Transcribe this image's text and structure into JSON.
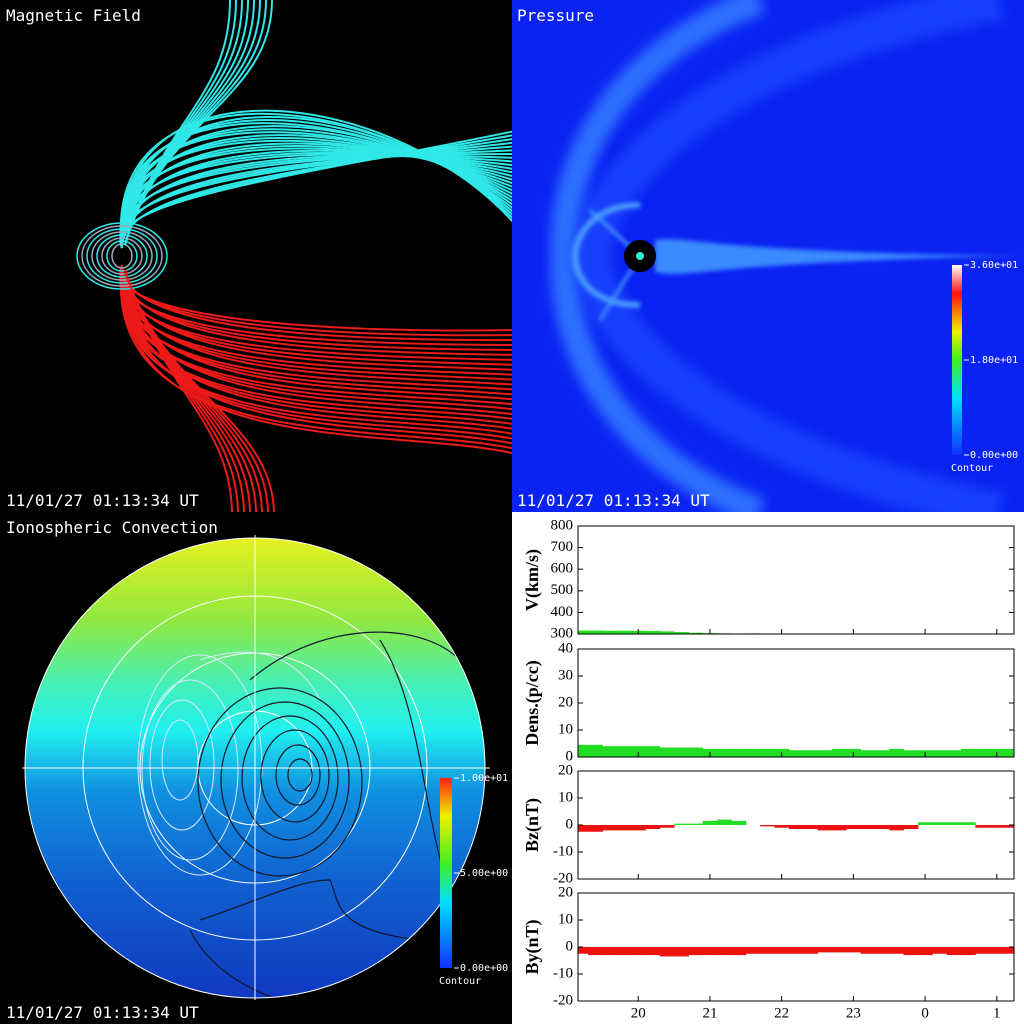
{
  "panels": {
    "magnetic": {
      "title": "Magnetic Field",
      "timestamp": "11/01/27 01:13:34 UT"
    },
    "pressure": {
      "title": "Pressure",
      "timestamp": "11/01/27 01:13:34 UT",
      "colorbar": {
        "range": [
          0,
          36
        ],
        "ticks": [
          {
            "value": 36,
            "label": "3.60e+01"
          },
          {
            "value": 18,
            "label": "1.80e+01"
          },
          {
            "value": 0,
            "label": "0.00e+00"
          }
        ],
        "caption": "Contour"
      }
    },
    "ionosphere": {
      "title": "Ionospheric Convection",
      "timestamp": "11/01/27 01:13:34 UT",
      "colorbar": {
        "range": [
          0,
          10
        ],
        "ticks": [
          {
            "value": 10,
            "label": "1.00e+01"
          },
          {
            "value": 5,
            "label": "5.00e+00"
          },
          {
            "value": 0,
            "label": "0.00e+00"
          }
        ],
        "caption": "Contour"
      }
    }
  },
  "chart_data": [
    {
      "type": "area",
      "ylabel": "V(km/s)",
      "x": [
        19.2,
        19.4,
        19.6,
        19.8,
        20.0,
        20.2,
        20.4,
        20.6,
        20.8,
        21.0,
        21.2,
        21.4,
        21.6,
        21.8,
        22.0,
        22.2,
        22.4,
        22.6,
        22.8,
        23.0,
        23.2,
        23.4,
        23.6,
        23.8,
        24.0,
        24.2,
        24.4,
        24.6,
        24.8,
        25.0,
        25.2
      ],
      "values": [
        316,
        316,
        315,
        315,
        315,
        314,
        312,
        309,
        306,
        304,
        303,
        302,
        303,
        300,
        300,
        300,
        300,
        300,
        300,
        300,
        300,
        300,
        300,
        300,
        300,
        300,
        300,
        300,
        300,
        300,
        300
      ],
      "xlim": [
        19.16,
        25.24
      ],
      "ylim": [
        300,
        800
      ],
      "yticks": [
        300,
        400,
        500,
        600,
        700,
        800
      ],
      "color_positive": "#22dd22",
      "color_negative": "#ee1111"
    },
    {
      "type": "area",
      "ylabel": "Dens.(p/cc)",
      "x": [
        19.2,
        19.4,
        19.6,
        19.8,
        20.0,
        20.2,
        20.4,
        20.6,
        20.8,
        21.0,
        21.2,
        21.4,
        21.6,
        21.8,
        22.0,
        22.2,
        22.4,
        22.6,
        22.8,
        23.0,
        23.2,
        23.4,
        23.6,
        23.8,
        24.0,
        24.2,
        24.4,
        24.6,
        24.8,
        25.0,
        25.2
      ],
      "values": [
        4.5,
        4.5,
        4,
        4,
        4,
        4,
        3.5,
        3.5,
        3.5,
        3,
        3,
        3,
        3,
        3,
        3,
        2.5,
        2.5,
        2.5,
        3,
        3,
        2.5,
        2.5,
        3,
        2.5,
        2.5,
        2.5,
        2.5,
        3,
        3,
        3,
        3
      ],
      "xlim": [
        19.16,
        25.24
      ],
      "ylim": [
        0,
        40
      ],
      "yticks": [
        0,
        10,
        20,
        30,
        40
      ],
      "color_positive": "#22dd22",
      "color_negative": "#ee1111"
    },
    {
      "type": "area",
      "ylabel": "Bz(nT)",
      "x": [
        19.2,
        19.4,
        19.6,
        19.8,
        20.0,
        20.2,
        20.4,
        20.6,
        20.8,
        21.0,
        21.2,
        21.4,
        21.6,
        21.8,
        22.0,
        22.2,
        22.4,
        22.6,
        22.8,
        23.0,
        23.2,
        23.4,
        23.6,
        23.8,
        24.0,
        24.2,
        24.4,
        24.6,
        24.8,
        25.0,
        25.2
      ],
      "values": [
        -2.5,
        -2.5,
        -2,
        -2,
        -2,
        -1.5,
        -1,
        0.5,
        0.5,
        1.5,
        2,
        1.5,
        0,
        -0.5,
        -1,
        -1.5,
        -1.5,
        -2,
        -2,
        -1.5,
        -1.5,
        -1.5,
        -2,
        -1.5,
        1,
        1,
        1,
        1,
        -1,
        -1,
        -1
      ],
      "xlim": [
        19.16,
        25.24
      ],
      "ylim": [
        -20,
        20
      ],
      "yticks": [
        -20,
        -10,
        0,
        10,
        20
      ],
      "color_positive": "#22dd22",
      "color_negative": "#ee1111"
    },
    {
      "type": "area",
      "ylabel": "By(nT)",
      "x": [
        19.2,
        19.4,
        19.6,
        19.8,
        20.0,
        20.2,
        20.4,
        20.6,
        20.8,
        21.0,
        21.2,
        21.4,
        21.6,
        21.8,
        22.0,
        22.2,
        22.4,
        22.6,
        22.8,
        23.0,
        23.2,
        23.4,
        23.6,
        23.8,
        24.0,
        24.2,
        24.4,
        24.6,
        24.8,
        25.0,
        25.2
      ],
      "values": [
        -2.5,
        -3,
        -3,
        -3,
        -3,
        -3,
        -3.5,
        -3.5,
        -3,
        -3,
        -3,
        -3,
        -2.5,
        -2.5,
        -2.5,
        -2.5,
        -2.5,
        -2,
        -2,
        -2,
        -2.5,
        -2.5,
        -2.5,
        -3,
        -3,
        -2.5,
        -3,
        -3,
        -2.5,
        -2.5,
        -2.5
      ],
      "xlim": [
        19.16,
        25.24
      ],
      "ylim": [
        -20,
        20
      ],
      "yticks": [
        -20,
        -10,
        0,
        10,
        20
      ],
      "xticks": [
        20,
        21,
        22,
        23,
        {
          "value": 24,
          "label": "0"
        },
        {
          "value": 25,
          "label": "1"
        }
      ],
      "color_positive": "#22dd22",
      "color_negative": "#ee1111"
    }
  ]
}
